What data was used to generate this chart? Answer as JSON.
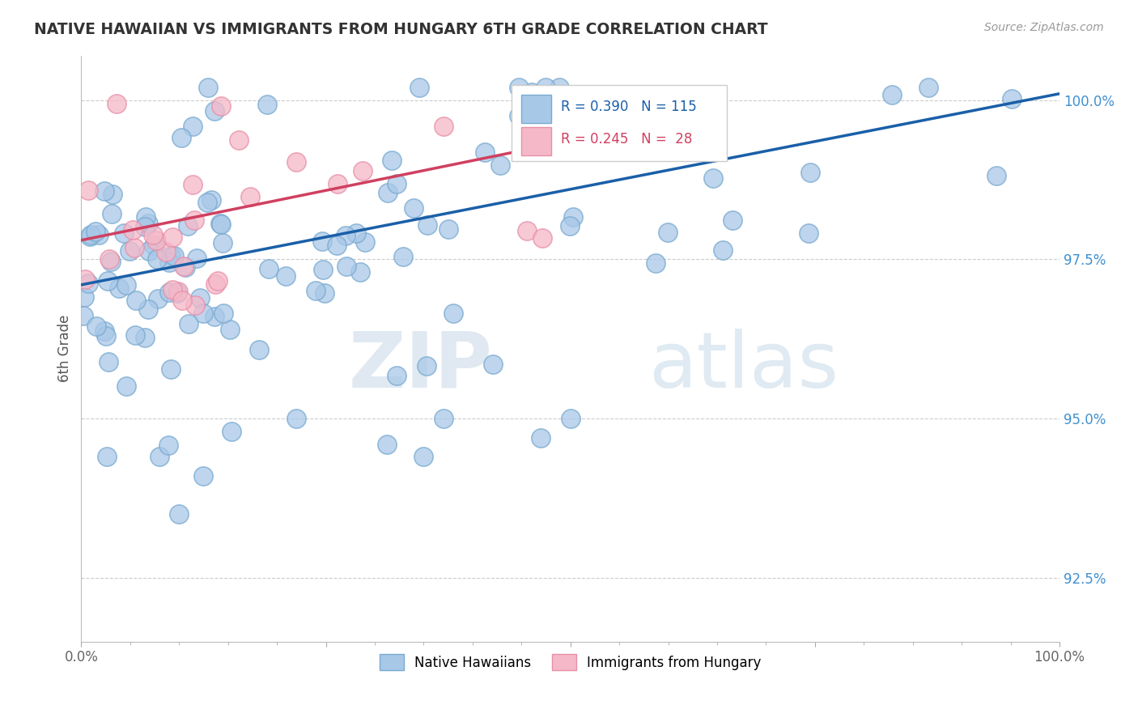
{
  "title": "NATIVE HAWAIIAN VS IMMIGRANTS FROM HUNGARY 6TH GRADE CORRELATION CHART",
  "source": "Source: ZipAtlas.com",
  "ylabel": "6th Grade",
  "xlim": [
    0.0,
    1.0
  ],
  "ylim": [
    0.915,
    1.007
  ],
  "yticks": [
    0.925,
    0.95,
    0.975,
    1.0
  ],
  "ytick_labels": [
    "92.5%",
    "95.0%",
    "97.5%",
    "100.0%"
  ],
  "xticks": [
    0.0,
    0.25,
    0.5,
    0.75,
    1.0
  ],
  "xtick_labels_shown": [
    "0.0%",
    "",
    "",
    "",
    "100.0%"
  ],
  "watermark_zip": "ZIP",
  "watermark_atlas": "atlas",
  "legend_text_blue": "R = 0.390   N = 115",
  "legend_text_pink": "R = 0.245   N =  28",
  "blue_color": "#a8c8e8",
  "blue_edge": "#7aaad0",
  "pink_color": "#f5b8c8",
  "pink_edge": "#e890a8",
  "trend_blue": "#1a5fa8",
  "trend_pink": "#d04060",
  "legend_blue_text_color": "#1a5fa8",
  "legend_pink_text_color": "#d04060",
  "ytick_color": "#4090d0",
  "ylabel_color": "#555555",
  "title_color": "#333333",
  "source_color": "#999999",
  "grid_color": "#cccccc",
  "blue_trend_start_x": 0.0,
  "blue_trend_start_y": 0.971,
  "blue_trend_end_x": 1.0,
  "blue_trend_end_y": 1.001,
  "pink_trend_start_x": 0.0,
  "pink_trend_start_y": 0.978,
  "pink_trend_end_x": 0.48,
  "pink_trend_end_y": 0.993
}
